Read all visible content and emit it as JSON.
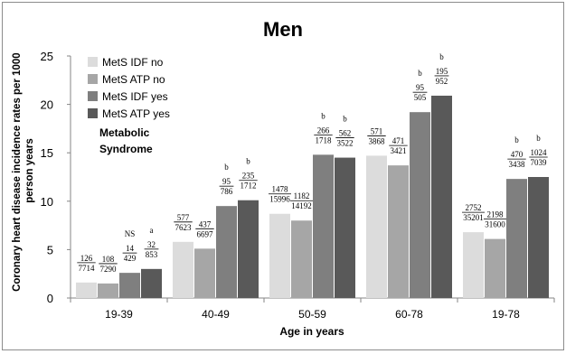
{
  "chart_data": {
    "type": "bar",
    "title": "Men",
    "xlabel": "Age in years",
    "ylabel": "Coronary heart disease incidence rates per 1000 person years",
    "ylabel_lines": [
      "Coronary heart disease incidence rates per 1000",
      "person years"
    ],
    "ylim": [
      0,
      25
    ],
    "yticks": [
      "0",
      "5",
      "10",
      "15",
      "20",
      "25"
    ],
    "categories": [
      "19-39",
      "40-49",
      "50-59",
      "60-78",
      "19-78"
    ],
    "annotation": "Metabolic Syndrome",
    "annotation_lines": [
      "Metabolic",
      "Syndrome"
    ],
    "legend_position": "top-left",
    "grid": false,
    "series": [
      {
        "name": "MetS IDF no",
        "color": "#dcdcdc",
        "values": [
          1.6,
          5.8,
          8.7,
          14.7,
          6.8
        ],
        "numerators": [
          "126",
          "577",
          "1478",
          "571",
          "2752"
        ],
        "denominators": [
          "7714",
          "7623",
          "15996",
          "3868",
          "35201"
        ],
        "marks": [
          "",
          "",
          "",
          "",
          ""
        ]
      },
      {
        "name": "MetS ATP no",
        "color": "#a6a6a6",
        "values": [
          1.5,
          5.1,
          8.0,
          13.7,
          6.1
        ],
        "numerators": [
          "108",
          "437",
          "1182",
          "471",
          "2198"
        ],
        "denominators": [
          "7290",
          "6697",
          "14192",
          "3421",
          "31600"
        ],
        "marks": [
          "",
          "",
          "",
          "",
          ""
        ]
      },
      {
        "name": "MetS IDF yes",
        "color": "#7f7f7f",
        "values": [
          2.6,
          9.5,
          14.8,
          19.2,
          12.3
        ],
        "numerators": [
          "14",
          "95",
          "266",
          "95",
          "470"
        ],
        "denominators": [
          "429",
          "786",
          "1718",
          "505",
          "3438"
        ],
        "marks": [
          "NS",
          "b",
          "b",
          "b",
          "b"
        ]
      },
      {
        "name": "MetS ATP yes",
        "color": "#595959",
        "values": [
          3.0,
          10.1,
          14.5,
          20.9,
          12.5
        ],
        "numerators": [
          "32",
          "235",
          "562",
          "195",
          "1024"
        ],
        "denominators": [
          "853",
          "1712",
          "3522",
          "952",
          "7039"
        ],
        "marks": [
          "a",
          "b",
          "b",
          "b",
          "b"
        ]
      }
    ]
  }
}
